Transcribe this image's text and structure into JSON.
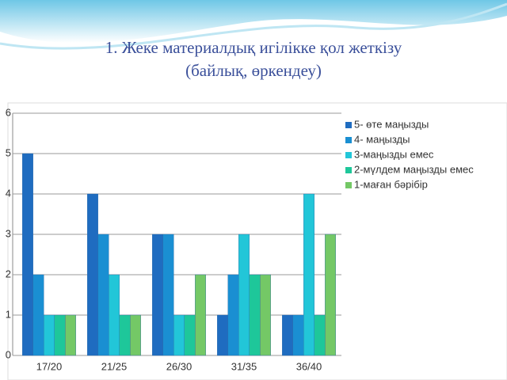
{
  "chart_data": {
    "type": "bar",
    "title": "1. Жеке материалдық игілікке қол жеткізу",
    "subtitle": "(байлық, өркендеу)",
    "categories": [
      "17/20",
      "21/25",
      "26/30",
      "31/35",
      "36/40"
    ],
    "series": [
      {
        "name": "5- өте маңызды",
        "color": "#1f6cc0",
        "values": [
          5,
          4,
          3,
          1,
          1
        ]
      },
      {
        "name": "4- маңызды",
        "color": "#1a8fd2",
        "values": [
          2,
          3,
          3,
          2,
          1
        ]
      },
      {
        "name": "3-маңызды емес",
        "color": "#22c6d8",
        "values": [
          1,
          2,
          1,
          3,
          4
        ]
      },
      {
        "name": "2-мүлдем маңызды емес",
        "color": "#1ec79a",
        "values": [
          1,
          1,
          1,
          2,
          1
        ]
      },
      {
        "name": "1-маған бәрібір",
        "color": "#74c866",
        "values": [
          1,
          1,
          2,
          2,
          3
        ]
      }
    ],
    "ylim": [
      0,
      6
    ],
    "yticks": [
      0,
      1,
      2,
      3,
      4,
      5,
      6
    ],
    "grid": true,
    "legend": "right"
  }
}
